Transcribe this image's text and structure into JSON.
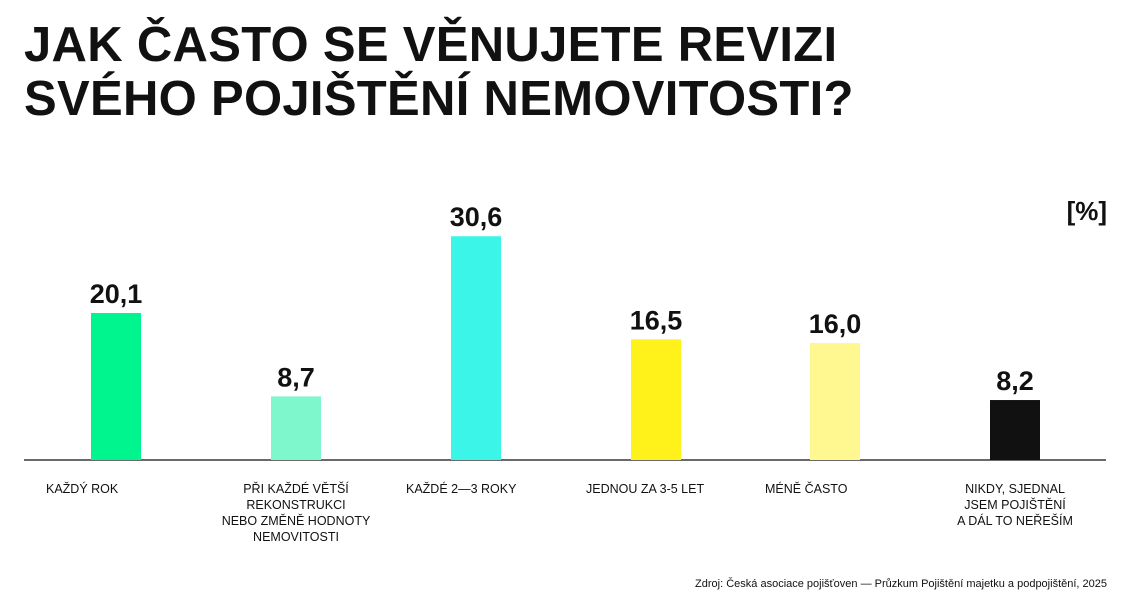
{
  "title": {
    "line1": "JAK ČASTO SE VĚNUJETE REVIZI",
    "line2": "SVÉHO POJIŠTĚNÍ NEMOVITOSTI?"
  },
  "unit_label": "[%]",
  "source": "Zdroj: Česká asociace pojišťoven — Průzkum Pojištění majetku a podpojištění, 2025",
  "chart_data": {
    "type": "bar",
    "title": "JAK ČASTO SE VĚNUJETE REVIZI SVÉHO POJIŠTĚNÍ NEMOVITOSTI?",
    "ylabel": "[%]",
    "ylim": [
      0,
      32
    ],
    "grid": false,
    "categories": [
      "KAŽDÝ ROK",
      "PŘI KAŽDÉ VĚTŠÍ REKONSTRUKCI NEBO ZMĚNĚ HODNOTY NEMOVITOSTI",
      "KAŽDÉ 2—3 ROKY",
      "JEDNOU ZA 3-5 LET",
      "MÉNĚ ČASTO",
      "NIKDY, SJEDNAL JSEM POJIŠTĚNÍ A DÁL TO NEŘEŠÍM"
    ],
    "category_lines": [
      [
        "KAŽDÝ ROK"
      ],
      [
        "PŘI KAŽDÉ VĚTŠÍ REKONSTRUKCI",
        "NEBO ZMĚNĚ HODNOTY",
        "NEMOVITOSTI"
      ],
      [
        "KAŽDÉ 2—3 ROKY"
      ],
      [
        "JEDNOU ZA 3-5 LET"
      ],
      [
        "MÉNĚ ČASTO"
      ],
      [
        "NIKDY, SJEDNAL",
        "JSEM POJIŠTĚNÍ",
        "A DÁL TO NEŘEŠÍM"
      ]
    ],
    "values": [
      20.1,
      8.7,
      30.6,
      16.5,
      16.0,
      8.2
    ],
    "value_labels": [
      "20,1",
      "8,7",
      "30,6",
      "16,5",
      "16,0",
      "8,2"
    ],
    "colors": [
      "#00f58f",
      "#7ff7cd",
      "#3af5e8",
      "#fff21a",
      "#fff78f",
      "#111111"
    ]
  }
}
